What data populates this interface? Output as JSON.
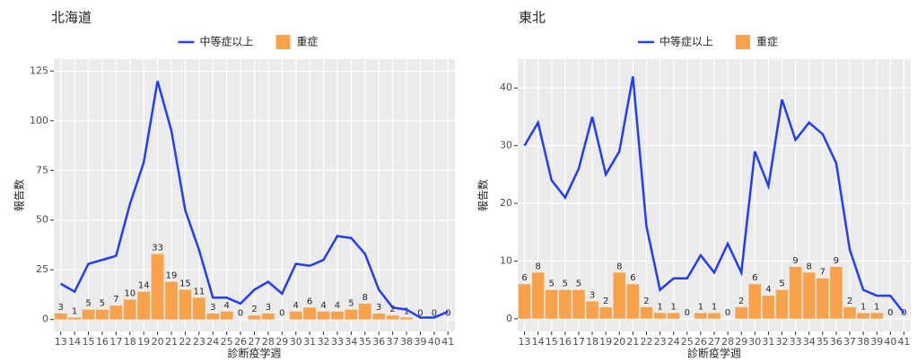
{
  "chart_data": [
    {
      "type": "combo",
      "title": "北海道",
      "x_label": "診断疫学週",
      "y_label": "報告数",
      "categories": [
        "13",
        "14",
        "15",
        "16",
        "17",
        "18",
        "19",
        "20",
        "21",
        "22",
        "23",
        "24",
        "25",
        "26",
        "27",
        "28",
        "29",
        "30",
        "31",
        "32",
        "33",
        "34",
        "35",
        "36",
        "37",
        "38",
        "39",
        "40",
        "41"
      ],
      "series": [
        {
          "name": "中等症以上",
          "type": "line",
          "color": "#1f3dff",
          "values": [
            18,
            14,
            28,
            30,
            32,
            58,
            79,
            120,
            95,
            55,
            35,
            11,
            11,
            8,
            15,
            19,
            13,
            28,
            27,
            30,
            42,
            41,
            33,
            15,
            6,
            5,
            1,
            1,
            4
          ]
        },
        {
          "name": "重症",
          "type": "bar",
          "color": "#f8a24b",
          "values": [
            3,
            1,
            5,
            5,
            7,
            10,
            14,
            33,
            19,
            15,
            11,
            3,
            4,
            0,
            2,
            3,
            0,
            4,
            6,
            4,
            4,
            5,
            8,
            3,
            2,
            1,
            0,
            0,
            0
          ]
        }
      ],
      "ylim": [
        -6,
        131
      ],
      "yticks": [
        0,
        25,
        50,
        75,
        100,
        125
      ],
      "grid": true
    },
    {
      "type": "combo",
      "title": "東北",
      "x_label": "診断疫学週",
      "y_label": "報告数",
      "categories": [
        "13",
        "14",
        "15",
        "16",
        "17",
        "18",
        "19",
        "20",
        "21",
        "22",
        "23",
        "24",
        "25",
        "26",
        "27",
        "28",
        "29",
        "30",
        "31",
        "32",
        "33",
        "34",
        "35",
        "36",
        "37",
        "38",
        "39",
        "40",
        "41"
      ],
      "series": [
        {
          "name": "中等症以上",
          "type": "line",
          "color": "#1f3dff",
          "values": [
            30,
            34,
            24,
            21,
            26,
            35,
            25,
            29,
            42,
            16,
            5,
            7,
            7,
            11,
            8,
            13,
            8,
            29,
            23,
            38,
            31,
            34,
            32,
            27,
            12,
            5,
            4,
            4,
            1
          ]
        },
        {
          "name": "重症",
          "type": "bar",
          "color": "#f8a24b",
          "values": [
            6,
            8,
            5,
            5,
            5,
            3,
            2,
            8,
            6,
            2,
            1,
            1,
            0,
            1,
            1,
            0,
            2,
            6,
            4,
            5,
            9,
            8,
            7,
            9,
            2,
            1,
            1,
            0,
            0
          ]
        }
      ],
      "ylim": [
        -2.2,
        45
      ],
      "yticks": [
        0,
        10,
        20,
        30,
        40
      ],
      "grid": true
    }
  ]
}
